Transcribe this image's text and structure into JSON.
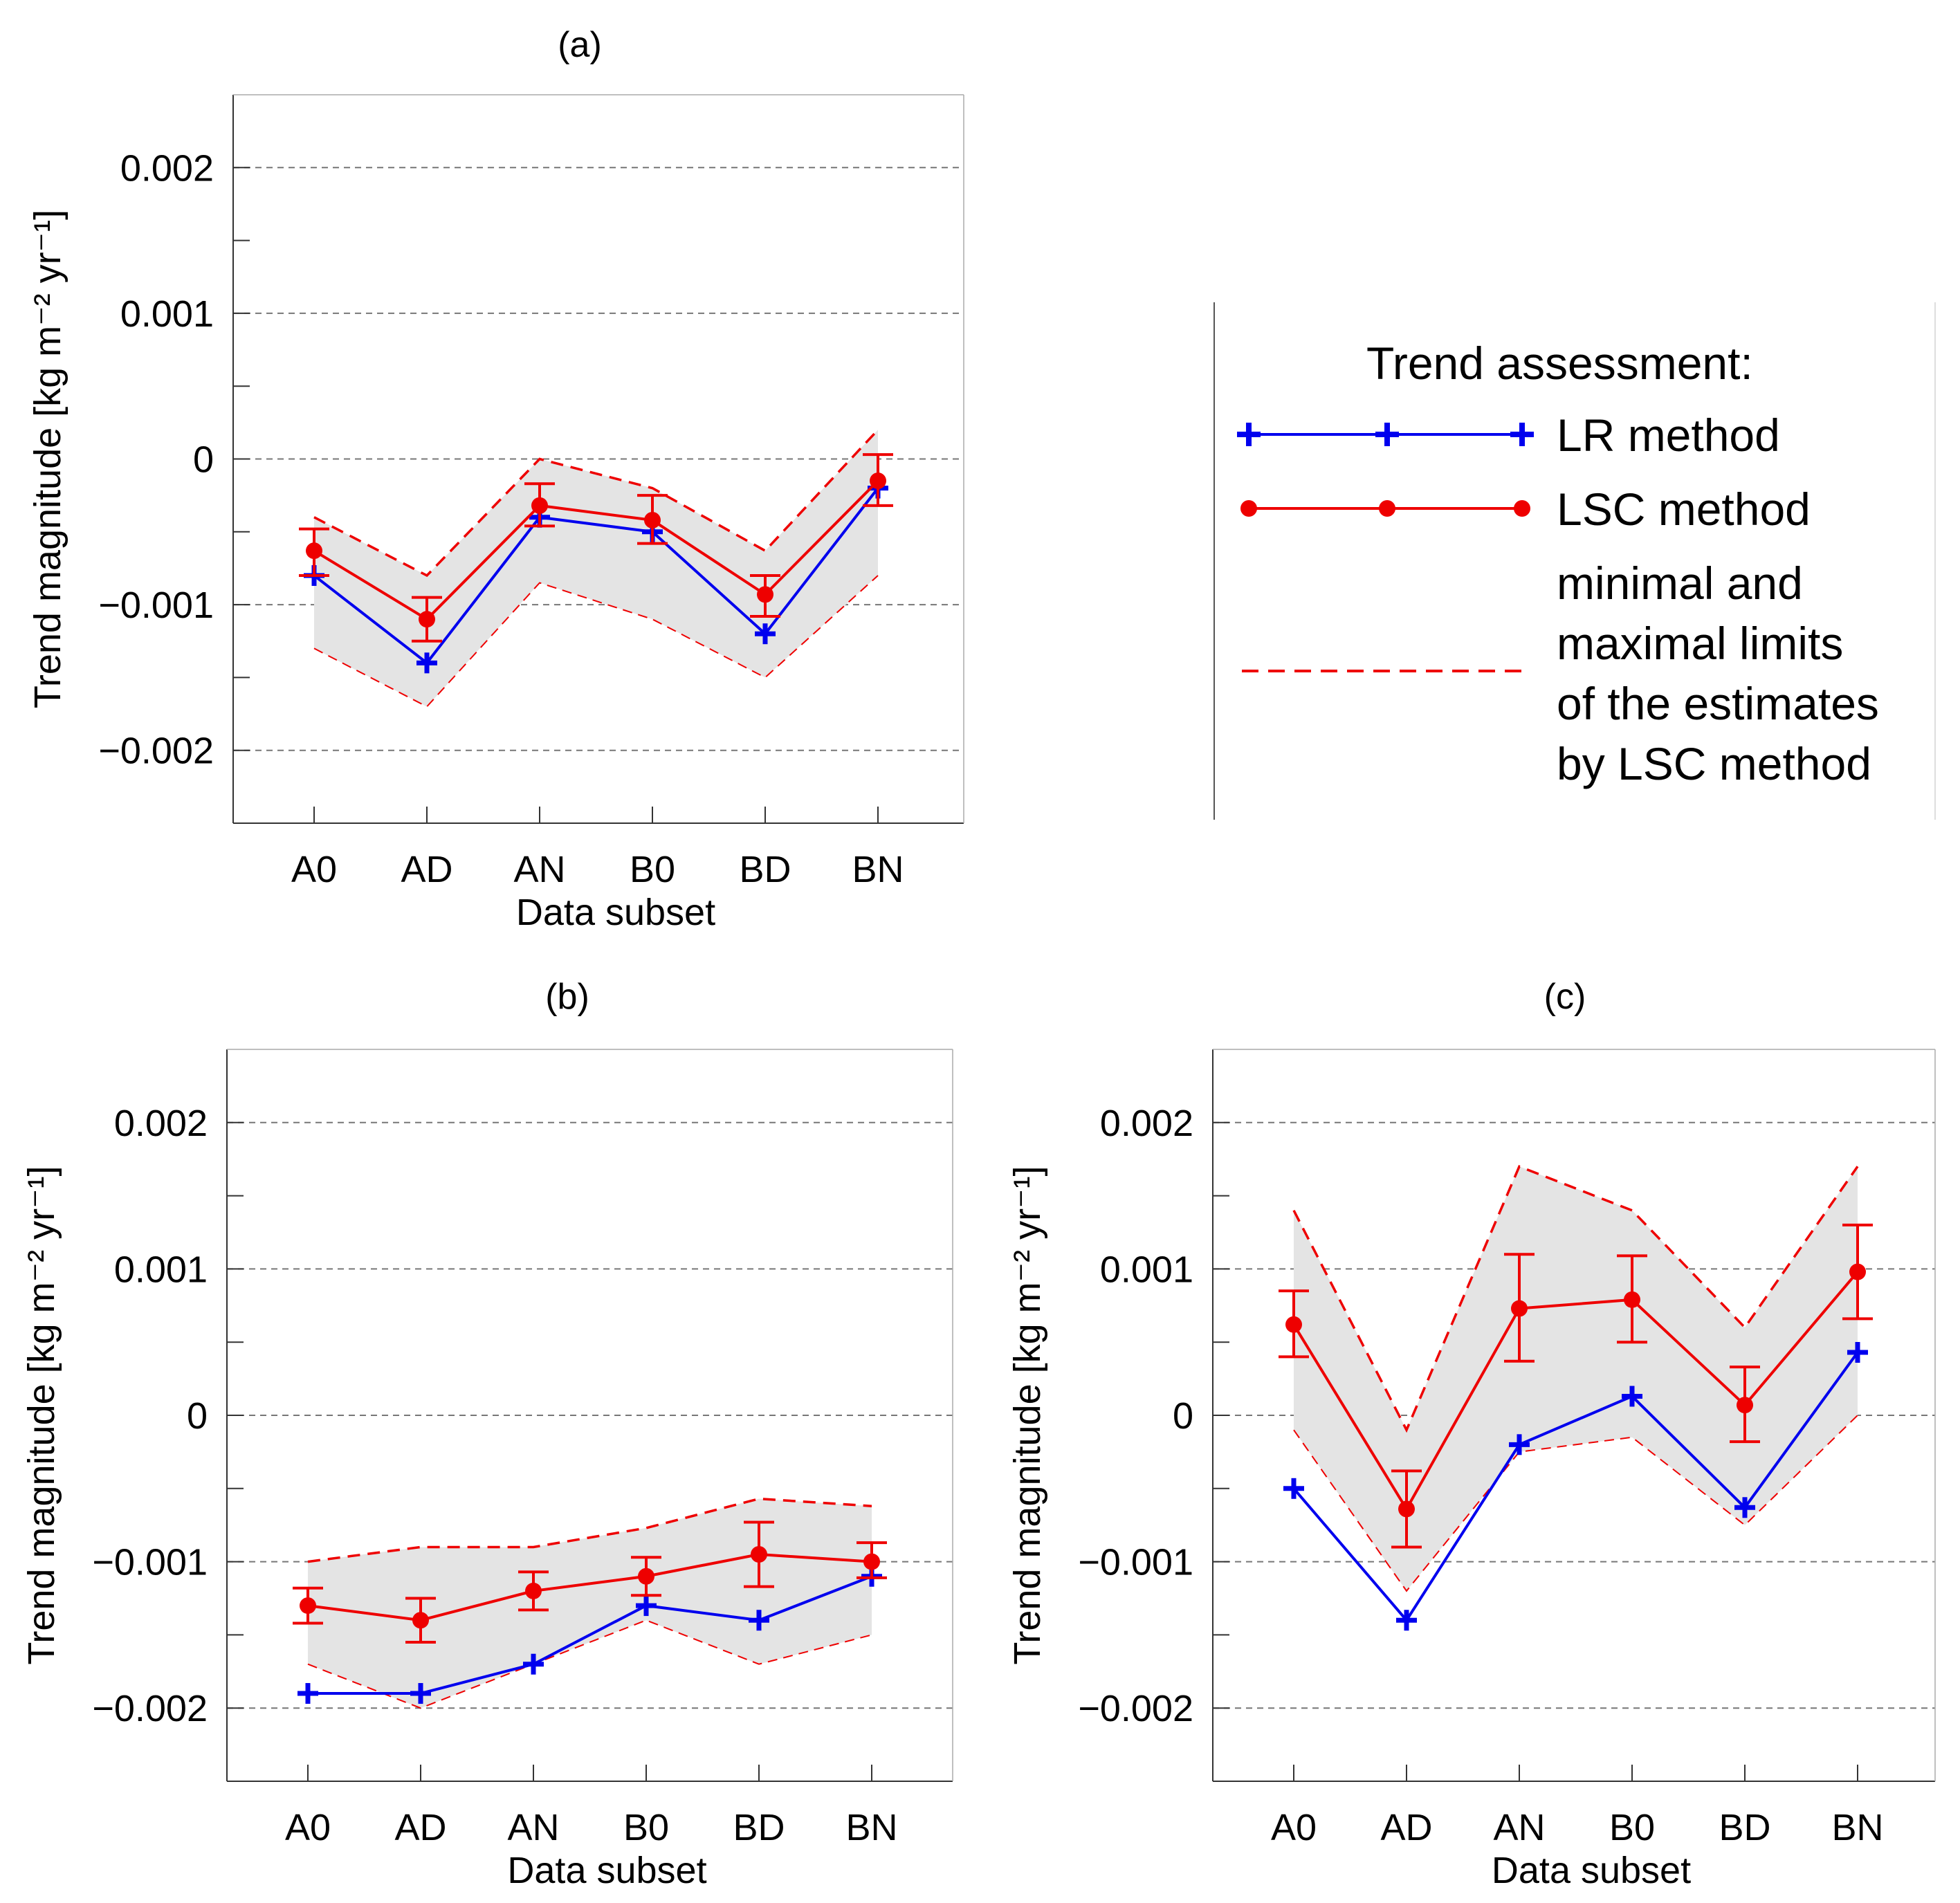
{
  "chart_data": [
    {
      "id": "a",
      "type": "line",
      "title": "(a)",
      "xlabel": "Data subset",
      "ylabel": "Trend magnitude [kg m⁻² yr⁻¹]",
      "categories": [
        "A0",
        "AD",
        "AN",
        "B0",
        "BD",
        "BN"
      ],
      "ylim": [
        -0.0025,
        0.0025
      ],
      "yticks": [
        -0.002,
        -0.001,
        0,
        0.001,
        0.002
      ],
      "yticklabels": [
        "−0.002",
        "−0.001",
        "0",
        "0.001",
        "0.002"
      ],
      "grid": true,
      "series": [
        {
          "name": "LR method",
          "color": "#0000ee",
          "marker": "plus",
          "values": [
            -0.0008,
            -0.0014,
            -0.0004,
            -0.0005,
            -0.0012,
            -0.0002
          ]
        },
        {
          "name": "LSC method",
          "color": "#ee0000",
          "marker": "circle",
          "values": [
            -0.00063,
            -0.0011,
            -0.00032,
            -0.00042,
            -0.00093,
            -0.00015
          ],
          "error_low": [
            -0.0008,
            -0.00125,
            -0.00046,
            -0.00058,
            -0.00108,
            -0.00032
          ],
          "error_high": [
            -0.00048,
            -0.00095,
            -0.00017,
            -0.00025,
            -0.0008,
            3e-05
          ]
        }
      ],
      "limits": {
        "name": "minimal and maximal limits of the estimates by LSC method",
        "color": "#ee0000",
        "min": [
          -0.0013,
          -0.0017,
          -0.00085,
          -0.0011,
          -0.0015,
          -0.0008
        ],
        "max": [
          -0.0004,
          -0.0008,
          0.0,
          -0.0002,
          -0.00063,
          0.0002
        ]
      }
    },
    {
      "id": "b",
      "type": "line",
      "title": "(b)",
      "xlabel": "Data subset",
      "ylabel": "Trend magnitude [kg m⁻² yr⁻¹]",
      "categories": [
        "A0",
        "AD",
        "AN",
        "B0",
        "BD",
        "BN"
      ],
      "ylim": [
        -0.0025,
        0.0025
      ],
      "yticks": [
        -0.002,
        -0.001,
        0,
        0.001,
        0.002
      ],
      "yticklabels": [
        "−0.002",
        "−0.001",
        "0",
        "0.001",
        "0.002"
      ],
      "grid": true,
      "series": [
        {
          "name": "LR method",
          "color": "#0000ee",
          "marker": "plus",
          "values": [
            -0.0019,
            -0.0019,
            -0.0017,
            -0.0013,
            -0.0014,
            -0.0011
          ]
        },
        {
          "name": "LSC method",
          "color": "#ee0000",
          "marker": "circle",
          "values": [
            -0.0013,
            -0.0014,
            -0.0012,
            -0.0011,
            -0.00095,
            -0.001
          ],
          "error_low": [
            -0.00142,
            -0.00155,
            -0.00133,
            -0.00123,
            -0.00117,
            -0.00111
          ],
          "error_high": [
            -0.00118,
            -0.00125,
            -0.00107,
            -0.00097,
            -0.00073,
            -0.00087
          ]
        }
      ],
      "limits": {
        "name": "minimal and maximal limits of the estimates by LSC method",
        "color": "#ee0000",
        "min": [
          -0.0017,
          -0.002,
          -0.0017,
          -0.0014,
          -0.0017,
          -0.0015
        ],
        "max": [
          -0.001,
          -0.0009,
          -0.0009,
          -0.00077,
          -0.00057,
          -0.00062
        ]
      }
    },
    {
      "id": "c",
      "type": "line",
      "title": "(c)",
      "xlabel": "Data subset",
      "ylabel": "Trend magnitude [kg m⁻² yr⁻¹]",
      "categories": [
        "A0",
        "AD",
        "AN",
        "B0",
        "BD",
        "BN"
      ],
      "ylim": [
        -0.0025,
        0.0025
      ],
      "yticks": [
        -0.002,
        -0.001,
        0,
        0.001,
        0.002
      ],
      "yticklabels": [
        "−0.002",
        "−0.001",
        "0",
        "0.001",
        "0.002"
      ],
      "grid": true,
      "series": [
        {
          "name": "LR method",
          "color": "#0000ee",
          "marker": "plus",
          "values": [
            -0.0005,
            -0.0014,
            -0.0002,
            0.00013,
            -0.00063,
            0.00043
          ]
        },
        {
          "name": "LSC method",
          "color": "#ee0000",
          "marker": "circle",
          "values": [
            0.00062,
            -0.00064,
            0.00073,
            0.00079,
            7e-05,
            0.00098
          ],
          "error_low": [
            0.0004,
            -0.0009,
            0.00037,
            0.0005,
            -0.00018,
            0.00066
          ],
          "error_high": [
            0.00085,
            -0.00038,
            0.0011,
            0.00109,
            0.00033,
            0.0013
          ]
        }
      ],
      "limits": {
        "name": "minimal and maximal limits of the estimates by LSC method",
        "color": "#ee0000",
        "min": [
          -0.0001,
          -0.0012,
          -0.00025,
          -0.00015,
          -0.00075,
          0.0
        ],
        "max": [
          0.0014,
          -0.0001,
          0.0017,
          0.0014,
          0.0006,
          0.0017
        ]
      }
    }
  ],
  "legend": {
    "title": "Trend assessment:",
    "lr_label": "LR method",
    "lsc_label": "LSC method",
    "limits_lines": [
      "minimal and",
      "maximal limits",
      "of the estimates",
      "by LSC method"
    ]
  }
}
